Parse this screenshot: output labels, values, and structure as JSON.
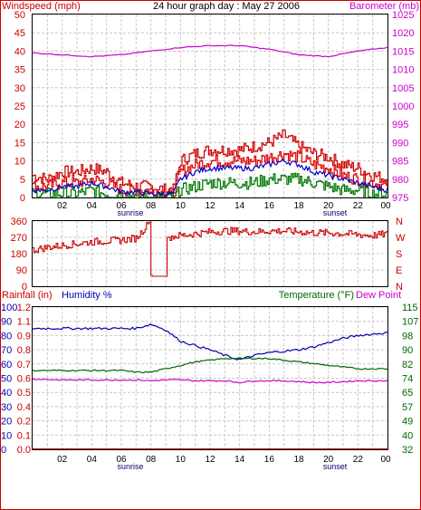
{
  "header": {
    "left_label": "Windspeed (mph)",
    "title": "24 hour graph day : May 27 2006",
    "right_label": "Barometer (mb)"
  },
  "colors": {
    "wind": "#cc0000",
    "gust": "#dd0000",
    "avg_wind": "#0000cc",
    "low_wind": "#007700",
    "barometer": "#cc00cc",
    "direction": "#cc0000",
    "rain": "#cc0000",
    "humidity": "#0000aa",
    "temperature": "#006600",
    "dewpoint": "#cc00cc",
    "frame": "#cc0000",
    "grid": "#c8c8c8"
  },
  "x_ticks": [
    "02",
    "04",
    "06",
    "08",
    "10",
    "12",
    "14",
    "16",
    "18",
    "20",
    "22",
    "00"
  ],
  "sunrise_label": "sunrise",
  "sunset_label": "sunset",
  "panel_wind": {
    "yticks_left": [
      "0",
      "5",
      "10",
      "15",
      "20",
      "25",
      "30",
      "35",
      "40",
      "45",
      "50"
    ],
    "yticks_right": [
      "975",
      "980",
      "985",
      "990",
      "995",
      "1000",
      "1005",
      "1010",
      "1015",
      "1020",
      "1025"
    ]
  },
  "panel_dir": {
    "yticks_left": [
      "0",
      "90",
      "180",
      "270",
      "360"
    ],
    "compass": [
      "N",
      "W",
      "S",
      "E",
      "N"
    ]
  },
  "panel_temp": {
    "rain_label": "Rainfall (in)",
    "humidity_label": "Humidity %",
    "temp_label": "Temperature (°F)",
    "dew_label": "Dew Point",
    "yticks_humidity": [
      "0",
      "10",
      "20",
      "30",
      "40",
      "50",
      "60",
      "70",
      "80",
      "90",
      "100"
    ],
    "yticks_rain": [
      "0.0",
      "0.1",
      "0.2",
      "0.4",
      "0.5",
      "0.6",
      "0.7",
      "0.8",
      "0.9",
      "1.1",
      "1.2"
    ],
    "yticks_temp": [
      "32",
      "40",
      "49",
      "57",
      "65",
      "74",
      "82",
      "90",
      "98",
      "107",
      "115"
    ]
  },
  "chart_data": [
    {
      "type": "line",
      "xlabel": "",
      "xlim": [
        0,
        24
      ],
      "ylim": [
        0,
        50
      ],
      "y2lim": [
        975,
        1025
      ],
      "series": [
        {
          "name": "Windspeed (mph)",
          "axis": "left",
          "x": [
            0,
            1,
            2,
            3,
            4,
            5,
            6,
            7,
            8,
            9,
            9.5,
            10,
            11,
            12,
            13,
            14,
            15,
            16,
            17,
            18,
            19,
            20,
            21,
            22,
            23,
            24
          ],
          "values": [
            3,
            3,
            4,
            4,
            5,
            4,
            2,
            2,
            2,
            1,
            1,
            7,
            9,
            10,
            10,
            10,
            10,
            11,
            12,
            11,
            9,
            8,
            6,
            5,
            4,
            3
          ]
        },
        {
          "name": "Gust",
          "axis": "left",
          "x": [
            0,
            1,
            2,
            3,
            4,
            5,
            6,
            7,
            8,
            9,
            9.5,
            10,
            11,
            12,
            13,
            14,
            15,
            16,
            17,
            18,
            19,
            20,
            21,
            22,
            23,
            24
          ],
          "values": [
            6,
            5,
            7,
            7,
            8,
            7,
            4,
            3,
            3,
            2,
            2,
            10,
            12,
            13,
            13,
            13,
            14,
            15,
            17,
            14,
            12,
            11,
            9,
            8,
            6,
            5
          ]
        },
        {
          "name": "Average wind",
          "axis": "left",
          "x": [
            0,
            1,
            2,
            3,
            4,
            5,
            6,
            7,
            8,
            9,
            9.5,
            10,
            11,
            12,
            13,
            14,
            15,
            16,
            17,
            18,
            19,
            20,
            21,
            22,
            23,
            24
          ],
          "values": [
            2,
            2,
            3,
            3,
            4,
            3,
            1.5,
            1.5,
            1,
            1,
            1,
            5,
            7,
            8,
            8,
            8,
            8,
            9,
            10,
            9,
            7,
            6,
            5,
            4,
            3,
            2
          ]
        },
        {
          "name": "Low wind",
          "axis": "left",
          "x": [
            0,
            1,
            2,
            3,
            4,
            5,
            6,
            7,
            8,
            9,
            9.5,
            10,
            11,
            12,
            13,
            14,
            15,
            16,
            17,
            18,
            19,
            20,
            21,
            22,
            23,
            24
          ],
          "values": [
            1,
            1,
            1,
            1,
            2,
            1,
            0.5,
            0.5,
            0,
            0,
            0,
            2,
            3,
            4,
            4,
            4,
            4,
            5,
            5,
            5,
            4,
            3,
            2,
            2,
            1,
            1
          ]
        },
        {
          "name": "Barometer (mb)",
          "axis": "right",
          "x": [
            0,
            2,
            4,
            6,
            8,
            10,
            12,
            14,
            16,
            18,
            20,
            22,
            24
          ],
          "values": [
            1014.5,
            1014,
            1013.5,
            1014,
            1015,
            1016,
            1016.5,
            1016.5,
            1015.5,
            1014,
            1013.5,
            1015,
            1016
          ]
        }
      ]
    },
    {
      "type": "line",
      "xlim": [
        0,
        24
      ],
      "ylim": [
        0,
        360
      ],
      "series": [
        {
          "name": "Wind direction",
          "x": [
            0,
            1,
            2,
            3,
            4,
            5,
            6,
            7,
            7.9,
            8,
            8.1,
            9,
            9.1,
            9.5,
            10,
            11,
            12,
            13,
            14,
            15,
            16,
            17,
            18,
            19,
            20,
            21,
            22,
            23,
            24
          ],
          "values": [
            200,
            215,
            225,
            235,
            245,
            250,
            255,
            265,
            355,
            60,
            55,
            55,
            270,
            275,
            280,
            290,
            300,
            305,
            305,
            300,
            305,
            305,
            300,
            295,
            295,
            290,
            285,
            280,
            290
          ]
        }
      ]
    },
    {
      "type": "line",
      "xlim": [
        0,
        24
      ],
      "ylim": [
        0,
        100
      ],
      "y2lim": [
        32,
        115
      ],
      "series": [
        {
          "name": "Humidity %",
          "axis": "left",
          "x": [
            0,
            2,
            4,
            6,
            7,
            8,
            9,
            10,
            11,
            12,
            13,
            14,
            15,
            16,
            17,
            18,
            19,
            20,
            21,
            22,
            23,
            24
          ],
          "values": [
            85,
            85,
            85,
            85,
            85,
            88,
            84,
            76,
            73,
            70,
            66,
            63,
            66,
            68,
            69,
            70,
            72,
            75,
            78,
            80,
            81,
            82
          ]
        },
        {
          "name": "Temperature (°F)",
          "axis": "right",
          "x": [
            0,
            2,
            4,
            6,
            7,
            8,
            9,
            10,
            11,
            12,
            13,
            14,
            15,
            16,
            17,
            18,
            19,
            20,
            21,
            22,
            23,
            24
          ],
          "values": [
            78,
            78,
            78,
            78,
            77,
            77,
            79,
            81,
            83,
            84,
            85,
            85,
            85,
            85,
            84,
            83,
            82,
            81,
            80,
            79,
            79,
            79
          ]
        },
        {
          "name": "Dew Point",
          "axis": "right",
          "x": [
            0,
            2,
            4,
            6,
            7,
            8,
            9,
            10,
            11,
            12,
            13,
            14,
            15,
            16,
            17,
            18,
            19,
            20,
            21,
            22,
            23,
            24
          ],
          "values": [
            73,
            72.5,
            72.5,
            72.5,
            72.5,
            72,
            72.5,
            72.5,
            72,
            72,
            72,
            71,
            72,
            72,
            72,
            71.5,
            71,
            71,
            71.5,
            72,
            72,
            72
          ]
        },
        {
          "name": "Rainfall (in)",
          "axis": "rain",
          "x": [
            0,
            24
          ],
          "values": [
            0,
            0
          ]
        }
      ]
    }
  ]
}
